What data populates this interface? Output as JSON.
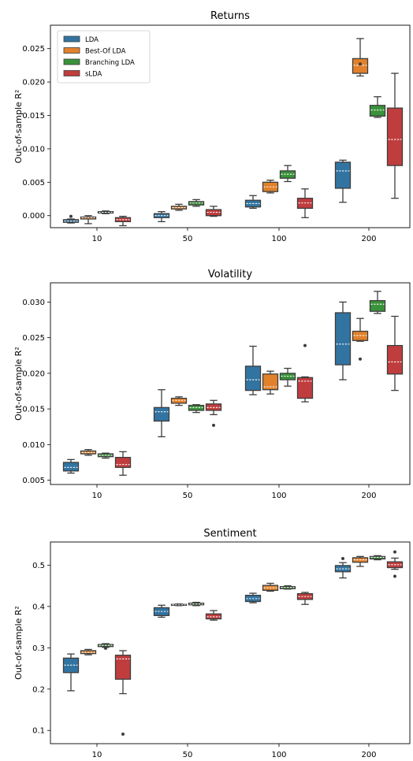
{
  "chart_data": [
    {
      "type": "box",
      "title": "Returns",
      "xlabel": "",
      "ylabel": "Out-of-sample R²",
      "categories": [
        "10",
        "50",
        "100",
        "200"
      ],
      "ylim": [
        -0.0018,
        0.0285
      ],
      "yticks": [
        0.0,
        0.005,
        0.01,
        0.015,
        0.02,
        0.025
      ],
      "ytick_labels": [
        "0.000",
        "0.005",
        "0.010",
        "0.015",
        "0.020",
        "0.025"
      ],
      "legend": "top-left",
      "series": [
        {
          "name": "LDA",
          "color": "#3274a1",
          "boxes": [
            {
              "whislo": -0.0011,
              "q1": -0.001,
              "med": -0.0008,
              "mean": -0.0008,
              "q3": -0.0006,
              "whishi": -0.0005,
              "fliers": [
                -0.0001
              ]
            },
            {
              "whislo": -0.0009,
              "q1": -0.0003,
              "med": 0.0,
              "mean": 0.0,
              "q3": 0.0003,
              "whishi": 0.0006,
              "fliers": []
            },
            {
              "whislo": 0.0011,
              "q1": 0.0013,
              "med": 0.0018,
              "mean": 0.0018,
              "q3": 0.0023,
              "whishi": 0.003,
              "fliers": []
            },
            {
              "whislo": 0.002,
              "q1": 0.0041,
              "med": 0.0067,
              "mean": 0.0067,
              "q3": 0.008,
              "whishi": 0.0083,
              "fliers": []
            }
          ]
        },
        {
          "name": "Best-Of LDA",
          "color": "#e1812c",
          "boxes": [
            {
              "whislo": -0.0012,
              "q1": -0.0005,
              "med": -0.0003,
              "mean": -0.0003,
              "q3": -0.0002,
              "whishi": 0.0,
              "fliers": []
            },
            {
              "whislo": 0.0008,
              "q1": 0.001,
              "med": 0.0012,
              "mean": 0.0012,
              "q3": 0.0014,
              "whishi": 0.0017,
              "fliers": []
            },
            {
              "whislo": 0.0034,
              "q1": 0.0036,
              "med": 0.0043,
              "mean": 0.0043,
              "q3": 0.005,
              "whishi": 0.0053,
              "fliers": []
            },
            {
              "whislo": 0.0209,
              "q1": 0.0213,
              "med": 0.0225,
              "mean": 0.0225,
              "q3": 0.0235,
              "whishi": 0.0265,
              "fliers": [
                0.0227
              ]
            }
          ]
        },
        {
          "name": "Branching LDA",
          "color": "#3a923a",
          "boxes": [
            {
              "whislo": 0.0003,
              "q1": 0.0004,
              "med": 0.0005,
              "mean": 0.0005,
              "q3": 0.0006,
              "whishi": 0.0007,
              "fliers": []
            },
            {
              "whislo": 0.0014,
              "q1": 0.0016,
              "med": 0.0019,
              "mean": 0.0019,
              "q3": 0.0021,
              "whishi": 0.0024,
              "fliers": []
            },
            {
              "whislo": 0.0051,
              "q1": 0.0056,
              "med": 0.0062,
              "mean": 0.0062,
              "q3": 0.0067,
              "whishi": 0.0075,
              "fliers": []
            },
            {
              "whislo": 0.0147,
              "q1": 0.0149,
              "med": 0.0158,
              "mean": 0.0158,
              "q3": 0.0165,
              "whishi": 0.0178,
              "fliers": []
            }
          ]
        },
        {
          "name": "sLDA",
          "color": "#c03d3e",
          "boxes": [
            {
              "whislo": -0.0015,
              "q1": -0.0009,
              "med": -0.0006,
              "mean": -0.0006,
              "q3": -0.0003,
              "whishi": -0.0001,
              "fliers": []
            },
            {
              "whislo": -0.0001,
              "q1": 0.0,
              "med": 0.0005,
              "mean": 0.0005,
              "q3": 0.0009,
              "whishi": 0.0014,
              "fliers": []
            },
            {
              "whislo": -0.0003,
              "q1": 0.0011,
              "med": 0.0019,
              "mean": 0.0019,
              "q3": 0.0026,
              "whishi": 0.004,
              "fliers": []
            },
            {
              "whislo": 0.0026,
              "q1": 0.0075,
              "med": 0.0114,
              "mean": 0.0114,
              "q3": 0.0161,
              "whishi": 0.0213,
              "fliers": []
            }
          ]
        }
      ]
    },
    {
      "type": "box",
      "title": "Volatility",
      "xlabel": "",
      "ylabel": "Out-of-sample R²",
      "categories": [
        "10",
        "50",
        "100",
        "200"
      ],
      "ylim": [
        0.0044,
        0.0327
      ],
      "yticks": [
        0.005,
        0.01,
        0.015,
        0.02,
        0.025,
        0.03
      ],
      "ytick_labels": [
        "0.005",
        "0.010",
        "0.015",
        "0.020",
        "0.025",
        "0.030"
      ],
      "series": [
        {
          "name": "LDA",
          "color": "#3274a1",
          "boxes": [
            {
              "whislo": 0.006,
              "q1": 0.0063,
              "med": 0.0068,
              "mean": 0.0068,
              "q3": 0.0075,
              "whishi": 0.0079,
              "fliers": []
            },
            {
              "whislo": 0.0111,
              "q1": 0.0133,
              "med": 0.0146,
              "mean": 0.0146,
              "q3": 0.0152,
              "whishi": 0.0177,
              "fliers": []
            },
            {
              "whislo": 0.017,
              "q1": 0.0176,
              "med": 0.0191,
              "mean": 0.0191,
              "q3": 0.021,
              "whishi": 0.0238,
              "fliers": []
            },
            {
              "whislo": 0.0191,
              "q1": 0.0212,
              "med": 0.0241,
              "mean": 0.0241,
              "q3": 0.0285,
              "whishi": 0.03,
              "fliers": []
            }
          ]
        },
        {
          "name": "Best-Of LDA",
          "color": "#e1812c",
          "boxes": [
            {
              "whislo": 0.0085,
              "q1": 0.0087,
              "med": 0.0089,
              "mean": 0.0089,
              "q3": 0.0091,
              "whishi": 0.0093,
              "fliers": []
            },
            {
              "whislo": 0.0155,
              "q1": 0.0158,
              "med": 0.0162,
              "mean": 0.0162,
              "q3": 0.0165,
              "whishi": 0.0167,
              "fliers": []
            },
            {
              "whislo": 0.0171,
              "q1": 0.0177,
              "med": 0.0181,
              "mean": 0.0181,
              "q3": 0.0199,
              "whishi": 0.0203,
              "fliers": []
            },
            {
              "whislo": 0.0245,
              "q1": 0.0246,
              "med": 0.0253,
              "mean": 0.0253,
              "q3": 0.0259,
              "whishi": 0.0277,
              "fliers": [
                0.022
              ]
            }
          ]
        },
        {
          "name": "Branching LDA",
          "color": "#3a923a",
          "boxes": [
            {
              "whislo": 0.0081,
              "q1": 0.0083,
              "med": 0.0085,
              "mean": 0.0085,
              "q3": 0.0087,
              "whishi": 0.0088,
              "fliers": []
            },
            {
              "whislo": 0.0145,
              "q1": 0.0148,
              "med": 0.0152,
              "mean": 0.0152,
              "q3": 0.0155,
              "whishi": 0.0156,
              "fliers": []
            },
            {
              "whislo": 0.0182,
              "q1": 0.0191,
              "med": 0.0196,
              "mean": 0.0196,
              "q3": 0.02,
              "whishi": 0.0207,
              "fliers": []
            },
            {
              "whislo": 0.0284,
              "q1": 0.0287,
              "med": 0.0297,
              "mean": 0.0297,
              "q3": 0.0302,
              "whishi": 0.0315,
              "fliers": []
            }
          ]
        },
        {
          "name": "sLDA",
          "color": "#c03d3e",
          "boxes": [
            {
              "whislo": 0.0057,
              "q1": 0.0068,
              "med": 0.0072,
              "mean": 0.0072,
              "q3": 0.0082,
              "whishi": 0.009,
              "fliers": []
            },
            {
              "whislo": 0.0142,
              "q1": 0.0148,
              "med": 0.0152,
              "mean": 0.0152,
              "q3": 0.0157,
              "whishi": 0.0162,
              "fliers": [
                0.0127
              ]
            },
            {
              "whislo": 0.016,
              "q1": 0.0165,
              "med": 0.0189,
              "mean": 0.0189,
              "q3": 0.0194,
              "whishi": 0.0195,
              "fliers": [
                0.0239
              ]
            },
            {
              "whislo": 0.0176,
              "q1": 0.0199,
              "med": 0.0216,
              "mean": 0.0216,
              "q3": 0.0239,
              "whishi": 0.028,
              "fliers": []
            }
          ]
        }
      ]
    },
    {
      "type": "box",
      "title": "Sentiment",
      "xlabel": "",
      "ylabel": "Out-of-sample R²",
      "categories": [
        "10",
        "50",
        "100",
        "200"
      ],
      "ylim": [
        0.068,
        0.556
      ],
      "yticks": [
        0.1,
        0.2,
        0.3,
        0.4,
        0.5
      ],
      "ytick_labels": [
        "0.1",
        "0.2",
        "0.3",
        "0.4",
        "0.5"
      ],
      "series": [
        {
          "name": "LDA",
          "color": "#3274a1",
          "boxes": [
            {
              "whislo": 0.196,
              "q1": 0.24,
              "med": 0.258,
              "mean": 0.258,
              "q3": 0.275,
              "whishi": 0.285,
              "fliers": []
            },
            {
              "whislo": 0.374,
              "q1": 0.378,
              "med": 0.388,
              "mean": 0.388,
              "q3": 0.397,
              "whishi": 0.403,
              "fliers": []
            },
            {
              "whislo": 0.409,
              "q1": 0.412,
              "med": 0.419,
              "mean": 0.419,
              "q3": 0.427,
              "whishi": 0.432,
              "fliers": []
            },
            {
              "whislo": 0.469,
              "q1": 0.484,
              "med": 0.491,
              "mean": 0.491,
              "q3": 0.499,
              "whishi": 0.506,
              "fliers": [
                0.516
              ]
            }
          ]
        },
        {
          "name": "Best-Of LDA",
          "color": "#e1812c",
          "boxes": [
            {
              "whislo": 0.283,
              "q1": 0.286,
              "med": 0.289,
              "mean": 0.289,
              "q3": 0.293,
              "whishi": 0.296,
              "fliers": []
            },
            {
              "whislo": 0.402,
              "q1": 0.403,
              "med": 0.404,
              "mean": 0.404,
              "q3": 0.405,
              "whishi": 0.406,
              "fliers": []
            },
            {
              "whislo": 0.437,
              "q1": 0.439,
              "med": 0.445,
              "mean": 0.445,
              "q3": 0.451,
              "whishi": 0.456,
              "fliers": []
            },
            {
              "whislo": 0.497,
              "q1": 0.507,
              "med": 0.513,
              "mean": 0.513,
              "q3": 0.518,
              "whishi": 0.521,
              "fliers": []
            }
          ]
        },
        {
          "name": "Branching LDA",
          "color": "#3a923a",
          "boxes": [
            {
              "whislo": 0.301,
              "q1": 0.303,
              "med": 0.306,
              "mean": 0.306,
              "q3": 0.308,
              "whishi": 0.31,
              "fliers": [
                0.299
              ]
            },
            {
              "whislo": 0.402,
              "q1": 0.404,
              "med": 0.406,
              "mean": 0.406,
              "q3": 0.408,
              "whishi": 0.41,
              "fliers": []
            },
            {
              "whislo": 0.442,
              "q1": 0.443,
              "med": 0.446,
              "mean": 0.446,
              "q3": 0.448,
              "whishi": 0.45,
              "fliers": []
            },
            {
              "whislo": 0.513,
              "q1": 0.515,
              "med": 0.519,
              "mean": 0.519,
              "q3": 0.521,
              "whishi": 0.523,
              "fliers": []
            }
          ]
        },
        {
          "name": "sLDA",
          "color": "#c03d3e",
          "boxes": [
            {
              "whislo": 0.189,
              "q1": 0.224,
              "med": 0.273,
              "mean": 0.273,
              "q3": 0.282,
              "whishi": 0.293,
              "fliers": [
                0.091
              ]
            },
            {
              "whislo": 0.367,
              "q1": 0.37,
              "med": 0.375,
              "mean": 0.375,
              "q3": 0.382,
              "whishi": 0.39,
              "fliers": []
            },
            {
              "whislo": 0.405,
              "q1": 0.417,
              "med": 0.424,
              "mean": 0.424,
              "q3": 0.431,
              "whishi": 0.434,
              "fliers": []
            },
            {
              "whislo": 0.49,
              "q1": 0.494,
              "med": 0.501,
              "mean": 0.501,
              "q3": 0.508,
              "whishi": 0.517,
              "fliers": [
                0.473,
                0.532
              ]
            }
          ]
        }
      ]
    }
  ]
}
